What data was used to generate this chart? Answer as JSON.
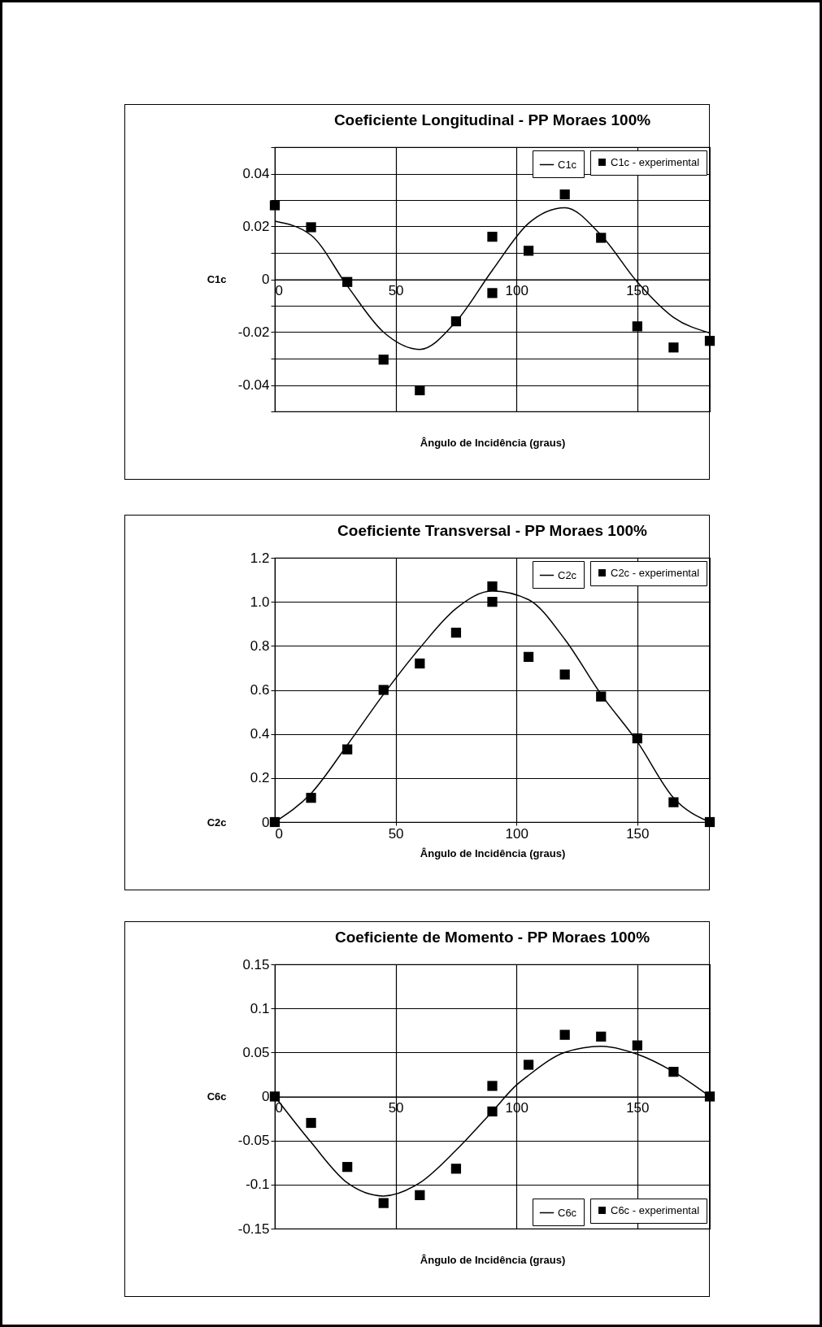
{
  "chart_data": [
    {
      "type": "line",
      "title": "Coeficiente Longitudinal - PP Moraes 100%",
      "xlabel": "Ângulo de Incidência (graus)",
      "ylabel": "C1c",
      "xlim": [
        0,
        180
      ],
      "xticks": [
        0,
        50,
        100,
        150
      ],
      "ylim": [
        -0.05,
        0.05
      ],
      "yticks": [
        {
          "value": -0.05,
          "label": null
        },
        -0.04,
        {
          "value": -0.03,
          "label": null
        },
        -0.02,
        {
          "value": -0.01,
          "label": null
        },
        0,
        {
          "value": 0.01,
          "label": null
        },
        0.02,
        {
          "value": 0.03,
          "label": null
        },
        0.04,
        {
          "value": 0.05,
          "label": null
        }
      ],
      "grid": true,
      "legend": "top right",
      "series": [
        {
          "name": "C1c",
          "color": "#000000",
          "x": [
            0,
            15,
            30,
            45,
            60,
            75,
            90,
            105,
            120,
            135,
            150,
            165,
            180
          ],
          "values": [
            0.022,
            0.0167,
            -0.0025,
            -0.02,
            -0.0265,
            -0.016,
            0.0034,
            0.0212,
            0.0271,
            0.0167,
            -0.001,
            -0.0144,
            -0.0203
          ]
        },
        {
          "name": "C1c - experimental",
          "type": "scatter",
          "marker": "square",
          "color": "#000000",
          "x": [
            0,
            15,
            30,
            45,
            60,
            75,
            90,
            90,
            105,
            120,
            135,
            150,
            165,
            180
          ],
          "values": [
            0.028,
            0.0197,
            -0.001,
            -0.0304,
            -0.042,
            -0.0159,
            0.0161,
            -0.0052,
            0.0108,
            0.0321,
            0.0157,
            -0.0178,
            -0.0258,
            -0.0233
          ]
        }
      ]
    },
    {
      "type": "line",
      "title": "Coeficiente Transversal - PP Moraes 100%",
      "xlabel": "Ângulo de Incidência (graus)",
      "ylabel": "C2c",
      "xlim": [
        0,
        180
      ],
      "xticks": [
        0,
        50,
        100,
        150
      ],
      "ylim": [
        0,
        1.2
      ],
      "yticks": [
        0,
        0.2,
        0.4,
        0.6,
        0.8,
        {
          "value": 1,
          "label": "1.0"
        },
        1.2
      ],
      "grid": true,
      "legend": "top right",
      "series": [
        {
          "name": "C2c",
          "color": "#000000",
          "x": [
            0,
            15,
            30,
            45,
            60,
            75,
            90,
            105,
            120,
            135,
            150,
            165,
            180
          ],
          "values": [
            0,
            0.13,
            0.35,
            0.58,
            0.79,
            0.97,
            1.05,
            1.01,
            0.83,
            0.58,
            0.365,
            0.11,
            0
          ]
        },
        {
          "name": "C2c - experimental",
          "type": "scatter",
          "marker": "square",
          "color": "#000000",
          "x": [
            0,
            15,
            30,
            45,
            60,
            75,
            90,
            90,
            105,
            120,
            135,
            150,
            165,
            180
          ],
          "values": [
            0,
            0.11,
            0.33,
            0.6,
            0.72,
            0.86,
            1.0,
            1.07,
            0.75,
            0.67,
            0.57,
            0.38,
            0.09,
            0
          ]
        }
      ]
    },
    {
      "type": "line",
      "title": "Coeficiente de Momento - PP Moraes 100%",
      "xlabel": "Ângulo de Incidência (graus)",
      "ylabel": "C6c",
      "xlim": [
        0,
        180
      ],
      "xticks": [
        0,
        50,
        100,
        150
      ],
      "ylim": [
        -0.15,
        0.15
      ],
      "yticks": [
        -0.15,
        -0.1,
        -0.05,
        0,
        0.05,
        0.1,
        0.15
      ],
      "grid": true,
      "legend": "bottom right",
      "series": [
        {
          "name": "C6c",
          "color": "#000000",
          "x": [
            0,
            15,
            30,
            45,
            60,
            75,
            90,
            100,
            105,
            120,
            135,
            150,
            165,
            180
          ],
          "values": [
            0,
            -0.052,
            -0.098,
            -0.113,
            -0.098,
            -0.061,
            -0.017,
            0.013,
            0.024,
            0.05,
            0.057,
            0.048,
            0.028,
            0
          ]
        },
        {
          "name": "C6c - experimental",
          "type": "scatter",
          "marker": "square",
          "color": "#000000",
          "x": [
            0,
            15,
            30,
            45,
            60,
            75,
            90,
            90,
            105,
            120,
            135,
            150,
            165,
            180
          ],
          "values": [
            0,
            -0.03,
            -0.08,
            -0.121,
            -0.112,
            -0.082,
            -0.017,
            0.012,
            0.036,
            0.07,
            0.068,
            0.058,
            0.028,
            0
          ]
        }
      ]
    }
  ]
}
